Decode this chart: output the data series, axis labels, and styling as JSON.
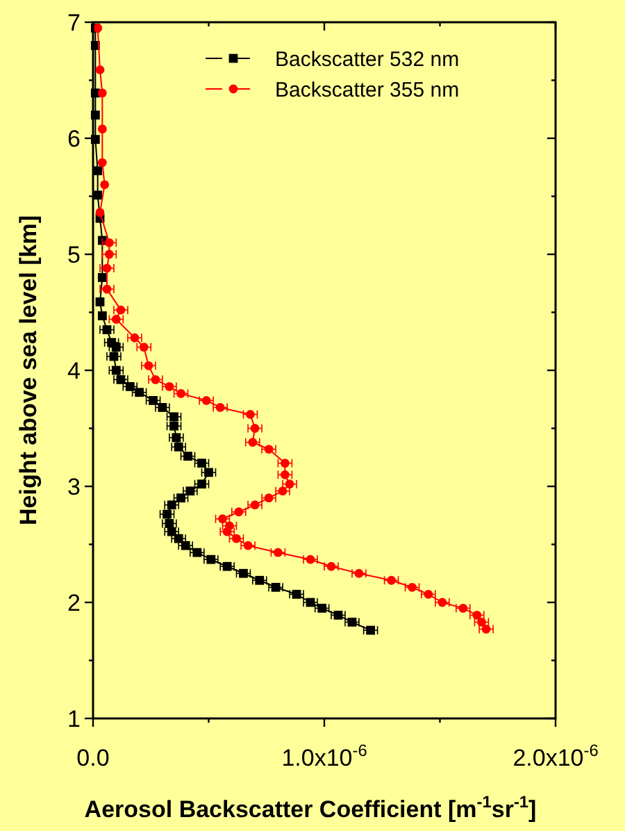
{
  "chart_data": {
    "type": "line",
    "xlabel": "Aerosol Backscatter Coefficient [m$^{-1}$sr$^{-1}$]",
    "ylabel": "Height above sea level [km]",
    "xlim": [
      0,
      2e-06
    ],
    "xticks": [
      {
        "value": 0,
        "label": "0.0"
      },
      {
        "value": 5e-07,
        "label": null
      },
      {
        "value": 1e-06,
        "label": "1.0x10$^{-6}$"
      },
      {
        "value": 1.5e-06,
        "label": null
      },
      {
        "value": 2e-06,
        "label": "2.0x10$^{-6}$"
      }
    ],
    "ylim": [
      1,
      7
    ],
    "yticks": [
      1,
      {
        "value": 1.5,
        "label": null
      },
      2,
      {
        "value": 2.5,
        "label": null
      },
      3,
      {
        "value": 3.5,
        "label": null
      },
      4,
      {
        "value": 4.5,
        "label": null
      },
      5,
      {
        "value": 5.5,
        "label": null
      },
      6,
      {
        "value": 6.5,
        "label": null
      },
      7
    ],
    "grid": false,
    "legend": "top right",
    "line_style": "solid",
    "series": [
      {
        "name": "Backscatter 532 nm",
        "color": "#000000",
        "marker": "square",
        "x": [
          1.2e-06,
          1.12e-06,
          1.06e-06,
          9.9e-07,
          9.4e-07,
          8.8e-07,
          7.9e-07,
          7.2e-07,
          6.5e-07,
          5.8e-07,
          5.1e-07,
          4.5e-07,
          4e-07,
          3.7e-07,
          3.4e-07,
          3.3e-07,
          3.2e-07,
          3.4e-07,
          3.8e-07,
          4.2e-07,
          4.7e-07,
          5e-07,
          4.7e-07,
          4.1e-07,
          3.7e-07,
          3.6e-07,
          3.5e-07,
          3.5e-07,
          3e-07,
          2.6e-07,
          2e-07,
          1.6e-07,
          1.2e-07,
          1e-07,
          9e-08,
          1e-07,
          8e-08,
          6e-08,
          4e-08,
          3e-08,
          4e-08,
          4e-08,
          3e-08,
          2e-08,
          2e-08,
          1e-08,
          1e-08,
          1e-08,
          1e-08,
          1e-08
        ],
        "values": [
          1.76,
          1.83,
          1.89,
          1.95,
          2.0,
          2.07,
          2.13,
          2.19,
          2.25,
          2.31,
          2.37,
          2.43,
          2.49,
          2.55,
          2.61,
          2.68,
          2.76,
          2.84,
          2.9,
          2.96,
          3.02,
          3.12,
          3.2,
          3.26,
          3.34,
          3.42,
          3.52,
          3.6,
          3.68,
          3.74,
          3.81,
          3.86,
          3.92,
          4.0,
          4.12,
          4.2,
          4.24,
          4.35,
          4.47,
          4.59,
          4.8,
          5.12,
          5.31,
          5.51,
          5.72,
          5.99,
          6.2,
          6.39,
          6.8,
          6.95
        ],
        "xerrors": [
          3e-08,
          3e-08,
          3e-08,
          3e-08,
          3e-08,
          3e-08,
          3e-08,
          3e-08,
          3e-08,
          3e-08,
          3e-08,
          3e-08,
          3e-08,
          3e-08,
          3e-08,
          3e-08,
          3e-08,
          3e-08,
          3e-08,
          3e-08,
          3e-08,
          3e-08,
          3e-08,
          3e-08,
          3e-08,
          3e-08,
          3e-08,
          3e-08,
          3e-08,
          3e-08,
          3e-08,
          3e-08,
          3e-08,
          3e-08,
          3e-08,
          3e-08,
          3e-08,
          3e-08,
          null,
          null,
          null,
          null,
          null,
          null,
          null,
          null,
          null,
          null,
          null,
          null
        ]
      },
      {
        "name": "Backscatter 355 nm",
        "color": "#ff0000",
        "marker": "circle",
        "x": [
          1.7e-06,
          1.68e-06,
          1.66e-06,
          1.6e-06,
          1.51e-06,
          1.45e-06,
          1.38e-06,
          1.29e-06,
          1.15e-06,
          1.03e-06,
          9.4e-07,
          8e-07,
          6.7e-07,
          6.2e-07,
          5.8e-07,
          5.9e-07,
          5.6e-07,
          6.3e-07,
          7e-07,
          7.6e-07,
          8.2e-07,
          8.5e-07,
          8.3e-07,
          8.3e-07,
          7.6e-07,
          6.9e-07,
          7e-07,
          6.8e-07,
          5.5e-07,
          4.9e-07,
          3.8e-07,
          3.3e-07,
          2.7e-07,
          2.4e-07,
          2.2e-07,
          1.8e-07,
          1e-07,
          1.2e-07,
          6e-08,
          6e-08,
          7e-08,
          7e-08,
          3e-08,
          5e-08,
          4e-08,
          4e-08,
          4e-08,
          3e-08,
          2e-08
        ],
        "values": [
          1.77,
          1.83,
          1.89,
          1.95,
          2.0,
          2.07,
          2.13,
          2.19,
          2.25,
          2.31,
          2.37,
          2.43,
          2.49,
          2.55,
          2.61,
          2.66,
          2.72,
          2.78,
          2.84,
          2.9,
          2.96,
          3.02,
          3.1,
          3.2,
          3.32,
          3.38,
          3.5,
          3.62,
          3.68,
          3.74,
          3.8,
          3.86,
          3.92,
          4.04,
          4.2,
          4.28,
          4.44,
          4.52,
          4.7,
          4.88,
          5.0,
          5.1,
          5.36,
          5.6,
          5.79,
          6.08,
          6.39,
          6.59,
          6.95
        ],
        "xerrors": [
          3e-08,
          3e-08,
          3e-08,
          3e-08,
          3e-08,
          3e-08,
          3e-08,
          3e-08,
          3e-08,
          3e-08,
          3e-08,
          3e-08,
          3e-08,
          3e-08,
          3e-08,
          3e-08,
          3e-08,
          3e-08,
          3e-08,
          3e-08,
          3e-08,
          3e-08,
          3e-08,
          3e-08,
          3e-08,
          3e-08,
          3e-08,
          3e-08,
          3e-08,
          3e-08,
          3e-08,
          3e-08,
          3e-08,
          3e-08,
          3e-08,
          3e-08,
          3e-08,
          3e-08,
          3e-08,
          3e-08,
          3e-08,
          3e-08,
          null,
          null,
          null,
          null,
          null,
          null,
          null
        ]
      }
    ]
  }
}
